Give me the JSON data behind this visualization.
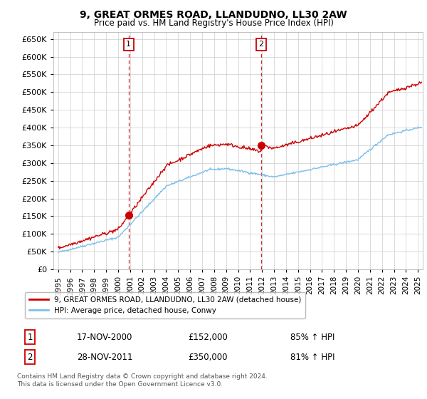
{
  "title": "9, GREAT ORMES ROAD, LLANDUDNO, LL30 2AW",
  "subtitle": "Price paid vs. HM Land Registry's House Price Index (HPI)",
  "ylim": [
    0,
    670000
  ],
  "yticks": [
    0,
    50000,
    100000,
    150000,
    200000,
    250000,
    300000,
    350000,
    400000,
    450000,
    500000,
    550000,
    600000,
    650000
  ],
  "xlim_start": 1994.6,
  "xlim_end": 2025.4,
  "hpi_color": "#7bbfea",
  "price_color": "#cc0000",
  "marker1_x": 2000.88,
  "marker1_y": 152000,
  "marker2_x": 2011.91,
  "marker2_y": 350000,
  "vline1_x": 2000.88,
  "vline2_x": 2011.91,
  "legend_label1": "9, GREAT ORMES ROAD, LLANDUDNO, LL30 2AW (detached house)",
  "legend_label2": "HPI: Average price, detached house, Conwy",
  "annotation1_num": "1",
  "annotation1_date": "17-NOV-2000",
  "annotation1_price": "£152,000",
  "annotation1_hpi": "85% ↑ HPI",
  "annotation2_num": "2",
  "annotation2_date": "28-NOV-2011",
  "annotation2_price": "£350,000",
  "annotation2_hpi": "81% ↑ HPI",
  "footnote1": "Contains HM Land Registry data © Crown copyright and database right 2024.",
  "footnote2": "This data is licensed under the Open Government Licence v3.0.",
  "background_color": "#ffffff",
  "grid_color": "#cccccc"
}
